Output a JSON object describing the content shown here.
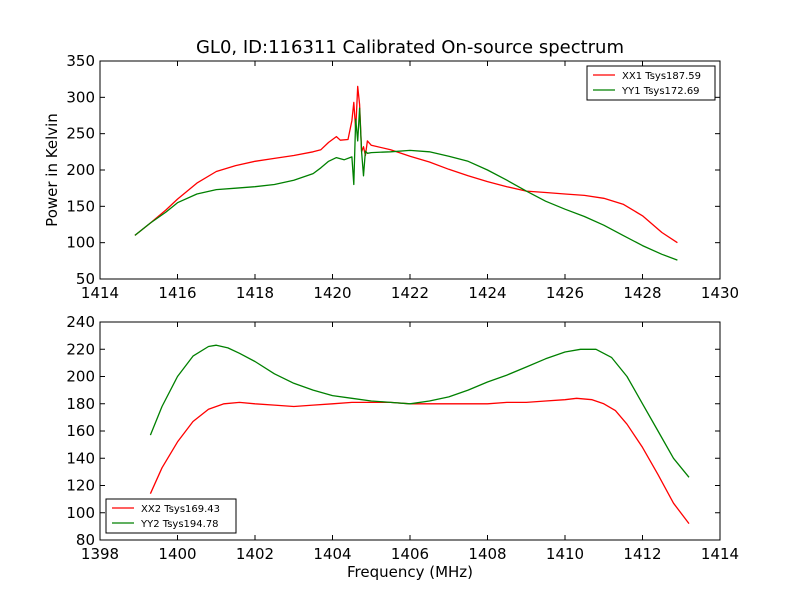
{
  "figure": {
    "title": "GL0, ID:116311 Calibrated On-source spectrum",
    "xlabel": "Frequency (MHz)",
    "ylabel": "Power in Kelvin"
  },
  "chart_data": [
    {
      "type": "line",
      "title": "GL0, ID:116311 Calibrated On-source spectrum",
      "xlabel": "",
      "ylabel": "Power in Kelvin",
      "xlim": [
        1414,
        1430
      ],
      "ylim": [
        50,
        350
      ],
      "xticks": [
        1414,
        1416,
        1418,
        1420,
        1422,
        1424,
        1426,
        1428,
        1430
      ],
      "yticks": [
        50,
        100,
        150,
        200,
        250,
        300,
        350
      ],
      "grid": false,
      "legend": "top-right",
      "series": [
        {
          "name": "XX1 Tsys187.59",
          "color": "#ff0000",
          "x": [
            1414.9,
            1415.3,
            1415.7,
            1416.0,
            1416.5,
            1417.0,
            1417.5,
            1418.0,
            1418.5,
            1419.0,
            1419.5,
            1419.7,
            1419.9,
            1420.1,
            1420.2,
            1420.4,
            1420.5,
            1420.55,
            1420.6,
            1420.65,
            1420.7,
            1420.75,
            1420.8,
            1420.85,
            1420.9,
            1421.0,
            1421.5,
            1422.0,
            1422.5,
            1423.0,
            1423.5,
            1424.0,
            1424.5,
            1425.0,
            1425.5,
            1426.0,
            1426.5,
            1427.0,
            1427.5,
            1428.0,
            1428.5,
            1428.9
          ],
          "y": [
            110,
            127,
            145,
            160,
            182,
            198,
            206,
            212,
            216,
            220,
            225,
            228,
            238,
            246,
            241,
            242,
            268,
            293,
            255,
            315,
            290,
            225,
            232,
            220,
            240,
            234,
            228,
            219,
            211,
            201,
            192,
            184,
            177,
            171,
            169,
            167,
            165,
            161,
            153,
            137,
            114,
            100
          ]
        },
        {
          "name": "YY1 Tsys172.69",
          "color": "#008000",
          "x": [
            1414.9,
            1415.3,
            1415.7,
            1416.0,
            1416.5,
            1417.0,
            1417.5,
            1418.0,
            1418.5,
            1419.0,
            1419.5,
            1419.7,
            1419.9,
            1420.1,
            1420.3,
            1420.5,
            1420.55,
            1420.6,
            1420.65,
            1420.7,
            1420.75,
            1420.8,
            1420.85,
            1420.9,
            1421.0,
            1421.5,
            1422.0,
            1422.5,
            1423.0,
            1423.5,
            1424.0,
            1424.5,
            1425.0,
            1425.5,
            1426.0,
            1426.5,
            1427.0,
            1427.5,
            1428.0,
            1428.5,
            1428.9
          ],
          "y": [
            110,
            127,
            142,
            155,
            167,
            173,
            175,
            177,
            180,
            186,
            195,
            203,
            212,
            217,
            214,
            218,
            180,
            270,
            240,
            285,
            225,
            192,
            226,
            223,
            224,
            225,
            227,
            225,
            219,
            212,
            200,
            186,
            171,
            157,
            146,
            136,
            124,
            110,
            96,
            84,
            76
          ]
        }
      ]
    },
    {
      "type": "line",
      "title": "",
      "xlabel": "Frequency (MHz)",
      "ylabel": "",
      "xlim": [
        1398,
        1414
      ],
      "ylim": [
        80,
        240
      ],
      "xticks": [
        1398,
        1400,
        1402,
        1404,
        1406,
        1408,
        1410,
        1412,
        1414
      ],
      "yticks": [
        80,
        100,
        120,
        140,
        160,
        180,
        200,
        220,
        240
      ],
      "grid": false,
      "legend": "bottom-left",
      "series": [
        {
          "name": "XX2 Tsys169.43",
          "color": "#ff0000",
          "x": [
            1399.3,
            1399.6,
            1400.0,
            1400.4,
            1400.8,
            1401.2,
            1401.6,
            1402.0,
            1402.5,
            1403.0,
            1403.5,
            1404.0,
            1404.5,
            1405.0,
            1405.5,
            1406.0,
            1406.5,
            1407.0,
            1407.5,
            1408.0,
            1408.5,
            1409.0,
            1409.5,
            1410.0,
            1410.3,
            1410.7,
            1411.0,
            1411.3,
            1411.6,
            1412.0,
            1412.4,
            1412.8,
            1413.2
          ],
          "y": [
            114,
            133,
            152,
            167,
            176,
            180,
            181,
            180,
            179,
            178,
            179,
            180,
            181,
            181,
            181,
            180,
            180,
            180,
            180,
            180,
            181,
            181,
            182,
            183,
            184,
            183,
            180,
            175,
            165,
            148,
            128,
            107,
            92
          ]
        },
        {
          "name": "YY2 Tsys194.78",
          "color": "#008000",
          "x": [
            1399.3,
            1399.6,
            1400.0,
            1400.4,
            1400.8,
            1401.0,
            1401.3,
            1401.6,
            1402.0,
            1402.5,
            1403.0,
            1403.5,
            1404.0,
            1404.5,
            1405.0,
            1405.5,
            1406.0,
            1406.5,
            1407.0,
            1407.5,
            1408.0,
            1408.5,
            1409.0,
            1409.5,
            1410.0,
            1410.4,
            1410.8,
            1411.2,
            1411.6,
            1412.0,
            1412.4,
            1412.8,
            1413.2
          ],
          "y": [
            157,
            178,
            200,
            215,
            222,
            223,
            221,
            217,
            211,
            202,
            195,
            190,
            186,
            184,
            182,
            181,
            180,
            182,
            185,
            190,
            196,
            201,
            207,
            213,
            218,
            220,
            220,
            214,
            200,
            180,
            160,
            140,
            126
          ]
        }
      ]
    }
  ]
}
